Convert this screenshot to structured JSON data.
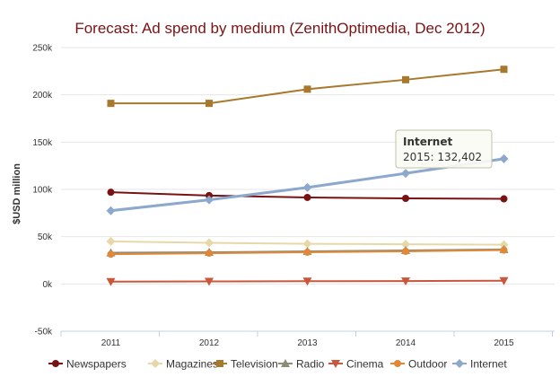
{
  "chart_data": {
    "type": "line",
    "title": "Forecast: Ad spend by medium (ZenithOptimedia, Dec 2012)",
    "xlabel": "",
    "ylabel": "$USD million",
    "categories": [
      "2011",
      "2012",
      "2013",
      "2014",
      "2015"
    ],
    "ylim": [
      -50000,
      250000
    ],
    "yticks": [
      -50000,
      0,
      50000,
      100000,
      150000,
      200000,
      250000
    ],
    "ytick_labels": [
      "-50k",
      "0k",
      "50k",
      "100k",
      "150k",
      "200k",
      "250k"
    ],
    "grid": true,
    "legend_position": "bottom",
    "series": [
      {
        "name": "Newspapers",
        "color": "#7a1214",
        "marker": "circle",
        "values": [
          97000,
          93500,
          91500,
          90500,
          90000
        ]
      },
      {
        "name": "Magazines",
        "color": "#e8d8a8",
        "marker": "diamond",
        "values": [
          45000,
          43500,
          42500,
          42000,
          41500
        ]
      },
      {
        "name": "Television",
        "color": "#a8782c",
        "marker": "square",
        "values": [
          191000,
          191000,
          206000,
          216000,
          227000
        ]
      },
      {
        "name": "Radio",
        "color": "#8c8c78",
        "marker": "triangle",
        "values": [
          33000,
          33500,
          34500,
          35500,
          36500
        ]
      },
      {
        "name": "Cinema",
        "color": "#c8583c",
        "marker": "triangle-down",
        "values": [
          2500,
          2700,
          2900,
          3100,
          3400
        ]
      },
      {
        "name": "Outdoor",
        "color": "#e08838",
        "marker": "circle",
        "values": [
          31500,
          32500,
          33500,
          34500,
          35800
        ]
      },
      {
        "name": "Internet",
        "color": "#8ca8cc",
        "marker": "diamond",
        "values": [
          77500,
          89000,
          102000,
          117000,
          132402
        ]
      }
    ],
    "tooltip": {
      "title": "Internet",
      "text": "2015: 132,402"
    }
  }
}
